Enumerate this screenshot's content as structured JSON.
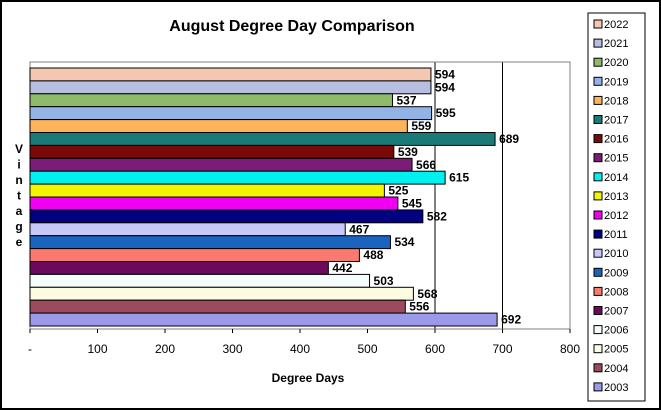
{
  "chart_data": {
    "type": "bar",
    "orientation": "horizontal",
    "title": "August Degree Day Comparison",
    "xlabel": "Degree Days",
    "ylabel": "Vintage",
    "xlim": [
      0,
      800
    ],
    "xticks": [
      "-",
      "100",
      "200",
      "300",
      "400",
      "500",
      "600",
      "700",
      "800"
    ],
    "grid": "vertical gridlines at 600, 700 and 800",
    "legend_position": "right",
    "series": [
      {
        "name": "2022",
        "value": 594,
        "color": "#f4c7b0"
      },
      {
        "name": "2021",
        "value": 594,
        "color": "#b6bfe0"
      },
      {
        "name": "2020",
        "value": 537,
        "color": "#8dbb6a"
      },
      {
        "name": "2019",
        "value": 595,
        "color": "#91b3e6"
      },
      {
        "name": "2018",
        "value": 559,
        "color": "#fbb45a"
      },
      {
        "name": "2017",
        "value": 689,
        "color": "#1a7a78"
      },
      {
        "name": "2016",
        "value": 539,
        "color": "#7a0a0a"
      },
      {
        "name": "2015",
        "value": 566,
        "color": "#7b1d74"
      },
      {
        "name": "2014",
        "value": 615,
        "color": "#00f0f0"
      },
      {
        "name": "2013",
        "value": 525,
        "color": "#f4f400"
      },
      {
        "name": "2012",
        "value": 545,
        "color": "#f000f0"
      },
      {
        "name": "2011",
        "value": 582,
        "color": "#000080"
      },
      {
        "name": "2010",
        "value": 467,
        "color": "#c8c8f8"
      },
      {
        "name": "2009",
        "value": 534,
        "color": "#1a64c0"
      },
      {
        "name": "2008",
        "value": 488,
        "color": "#fa7a72"
      },
      {
        "name": "2007",
        "value": 442,
        "color": "#6b0a5c"
      },
      {
        "name": "2006",
        "value": 503,
        "color": "#f4fcfc"
      },
      {
        "name": "2005",
        "value": 568,
        "color": "#fcfce2"
      },
      {
        "name": "2004",
        "value": 556,
        "color": "#9b4b5c"
      },
      {
        "name": "2003",
        "value": 692,
        "color": "#9a9ae8"
      }
    ]
  }
}
